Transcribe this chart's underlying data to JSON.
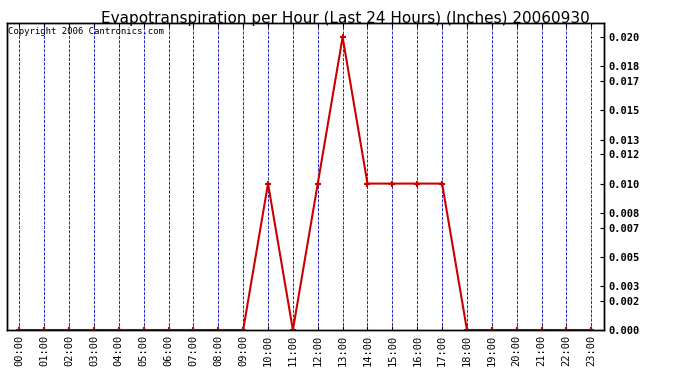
{
  "title": "Evapotranspiration per Hour (Last 24 Hours) (Inches) 20060930",
  "copyright": "Copyright 2006 Cantronics.com",
  "hours": [
    0,
    1,
    2,
    3,
    4,
    5,
    6,
    7,
    8,
    9,
    10,
    11,
    12,
    13,
    14,
    15,
    16,
    17,
    18,
    19,
    20,
    21,
    22,
    23
  ],
  "values": [
    0.0,
    0.0,
    0.0,
    0.0,
    0.0,
    0.0,
    0.0,
    0.0,
    0.0,
    0.0,
    0.01,
    0.0,
    0.01,
    0.02,
    0.01,
    0.01,
    0.01,
    0.01,
    0.0,
    0.0,
    0.0,
    0.0,
    0.0,
    0.0
  ],
  "yticks": [
    0.0,
    0.002,
    0.003,
    0.005,
    0.007,
    0.008,
    0.01,
    0.012,
    0.013,
    0.015,
    0.017,
    0.018,
    0.02
  ],
  "line_color": "#cc0000",
  "marker_color": "#cc0000",
  "grid_color": "#0000cc",
  "bg_color": "#ffffff",
  "plot_bg_color": "#ffffff",
  "title_fontsize": 11,
  "copyright_fontsize": 6.5,
  "tick_fontsize": 7.5,
  "ylim": [
    0.0,
    0.021
  ],
  "figwidth": 6.9,
  "figheight": 3.75,
  "dpi": 100
}
